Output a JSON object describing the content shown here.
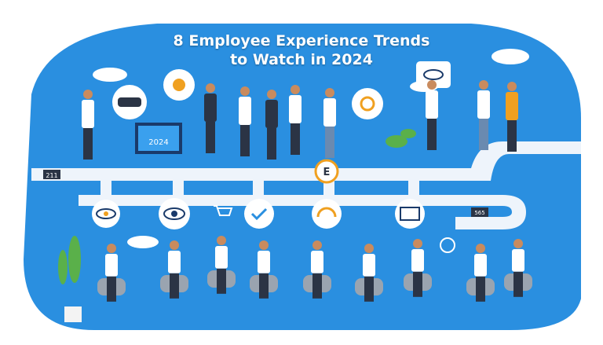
{
  "title": {
    "line1": "8 Employee Experience Trends",
    "line2": "to Watch in 2024"
  },
  "labels": {
    "monitor": "2024",
    "timeline_tag_left": "211",
    "badge": "E",
    "timeline_tag_right": "565"
  },
  "colors": {
    "background_blue": "#2a8fe0",
    "timeline": "#eef4fb",
    "accent_orange": "#f0a020",
    "suit_dark": "#2b3445"
  },
  "icons": [
    "vr-headset-icon",
    "sun-icon",
    "gear-icon",
    "eye-icon",
    "headphones-icon",
    "checkmark-icon",
    "cart-icon",
    "globe-icon",
    "plant-icon",
    "cloud-icon"
  ]
}
